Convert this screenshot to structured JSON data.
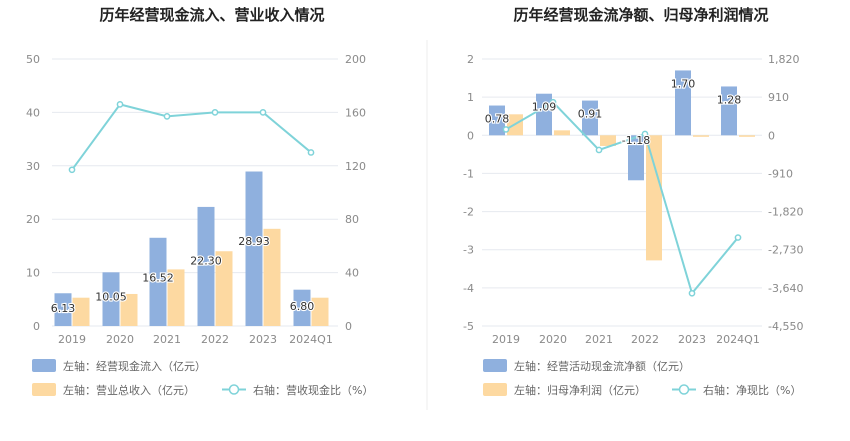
{
  "colors": {
    "bar_primary": "#8fb0de",
    "bar_secondary": "#fdd9a1",
    "line": "#7fd3d9",
    "grid": "#e6e9ef",
    "divider": "#eeeeee"
  },
  "chart_data": [
    {
      "type": "bar+line",
      "title": "历年经营现金流入、营业收入情况",
      "categories": [
        "2019",
        "2020",
        "2021",
        "2022",
        "2023",
        "2024Q1"
      ],
      "left_axis": {
        "min": 0,
        "max": 50,
        "ticks": [
          "0",
          "10",
          "20",
          "30",
          "40",
          "50"
        ],
        "tick_values": [
          0,
          10,
          20,
          30,
          40,
          50
        ]
      },
      "right_axis": {
        "min": 0,
        "max": 200,
        "ticks": [
          "0",
          "40",
          "80",
          "120",
          "160",
          "200"
        ],
        "tick_values": [
          0,
          40,
          80,
          120,
          160,
          200
        ]
      },
      "series": [
        {
          "name": "左轴：经营现金流入（亿元）",
          "kind": "bar",
          "axis": "left",
          "values": [
            6.13,
            10.05,
            16.52,
            22.3,
            28.93,
            6.8
          ],
          "labels": [
            "6.13",
            "10.05",
            "16.52",
            "22.30",
            "28.93",
            "6.80"
          ]
        },
        {
          "name": "左轴：营业总收入（亿元）",
          "kind": "bar",
          "axis": "left",
          "values": [
            5.3,
            6.0,
            10.6,
            14.0,
            18.2,
            5.3
          ]
        },
        {
          "name": "右轴：营收现金比（%）",
          "kind": "line",
          "axis": "right",
          "values": [
            117,
            166,
            157,
            160,
            160,
            130
          ]
        }
      ]
    },
    {
      "type": "bar+line",
      "title": "历年经营现金流净额、归母净利润情况",
      "categories": [
        "2019",
        "2020",
        "2021",
        "2022",
        "2023",
        "2024Q1"
      ],
      "left_axis": {
        "min": -5,
        "max": 2,
        "ticks": [
          "-5",
          "-4",
          "-3",
          "-2",
          "-1",
          "0",
          "1",
          "2"
        ],
        "tick_values": [
          -5,
          -4,
          -3,
          -2,
          -1,
          0,
          1,
          2
        ]
      },
      "right_axis": {
        "min": -4550,
        "max": 1820,
        "ticks": [
          "-4,550",
          "-3,640",
          "-2,730",
          "-1,820",
          "-910",
          "0",
          "910",
          "1,820"
        ],
        "tick_values": [
          -4550,
          -3640,
          -2730,
          -1820,
          -910,
          0,
          910,
          1820
        ]
      },
      "series": [
        {
          "name": "左轴：经营活动现金流净额（亿元）",
          "kind": "bar",
          "axis": "left",
          "values": [
            0.78,
            1.09,
            0.91,
            -1.18,
            1.7,
            1.28
          ],
          "labels": [
            "0.78",
            "1.09",
            "0.91",
            "-1.18",
            "1.70",
            "1.28"
          ]
        },
        {
          "name": "左轴：归母净利润（亿元）",
          "kind": "bar",
          "axis": "left",
          "values": [
            0.55,
            0.13,
            -0.28,
            -3.28,
            -0.04,
            -0.04
          ]
        },
        {
          "name": "右轴：净现比（%）",
          "kind": "line",
          "axis": "right",
          "values": [
            140,
            790,
            -350,
            30,
            -3770,
            -2440
          ]
        }
      ]
    }
  ]
}
